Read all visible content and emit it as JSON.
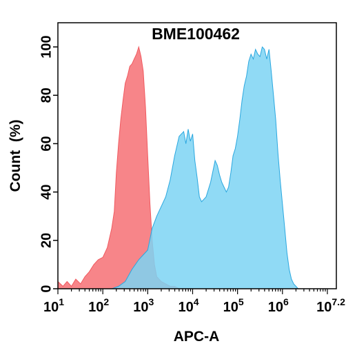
{
  "chart_data": {
    "type": "area",
    "title": "BME100462",
    "xlabel": "APC-A",
    "ylabel": "Count  (%)",
    "x_scale": "log10",
    "xlim": [
      10,
      15848932
    ],
    "ylim": [
      0,
      110
    ],
    "y_ticks": [
      0,
      20,
      40,
      60,
      80,
      100
    ],
    "y_tick_labels": [
      "0",
      "20",
      "40",
      "60",
      "80",
      "100"
    ],
    "x_ticks": [
      {
        "base": "10",
        "exp": "1"
      },
      {
        "base": "10",
        "exp": "2"
      },
      {
        "base": "10",
        "exp": "3"
      },
      {
        "base": "10",
        "exp": "4"
      },
      {
        "base": "10",
        "exp": "5"
      },
      {
        "base": "10",
        "exp": "6"
      },
      {
        "base": "10",
        "exp": "7.2"
      }
    ],
    "grid": false,
    "legend": "none",
    "series": [
      {
        "color": "#f0595f",
        "fill": "#f77e83",
        "points": [
          [
            10,
            3
          ],
          [
            13,
            1
          ],
          [
            16,
            3
          ],
          [
            20,
            1
          ],
          [
            25,
            4
          ],
          [
            32,
            2
          ],
          [
            40,
            5
          ],
          [
            50,
            7
          ],
          [
            63,
            10
          ],
          [
            79,
            12
          ],
          [
            100,
            13
          ],
          [
            126,
            17
          ],
          [
            158,
            25
          ],
          [
            180,
            32
          ],
          [
            200,
            48
          ],
          [
            224,
            60
          ],
          [
            251,
            70
          ],
          [
            282,
            78
          ],
          [
            316,
            85
          ],
          [
            355,
            88
          ],
          [
            398,
            92
          ],
          [
            447,
            93
          ],
          [
            500,
            95
          ],
          [
            562,
            97
          ],
          [
            631,
            100
          ],
          [
            708,
            96
          ],
          [
            794,
            90
          ],
          [
            891,
            75
          ],
          [
            1000,
            55
          ],
          [
            1122,
            35
          ],
          [
            1259,
            20
          ],
          [
            1413,
            10
          ],
          [
            1585,
            5
          ],
          [
            1995,
            3
          ],
          [
            2512,
            2
          ],
          [
            3162,
            1
          ],
          [
            3981,
            1
          ],
          [
            5012,
            0
          ],
          [
            6310,
            0
          ]
        ]
      },
      {
        "color": "#2aa7df",
        "fill": "#7dd3f3",
        "points": [
          [
            158,
            0
          ],
          [
            224,
            1
          ],
          [
            316,
            3
          ],
          [
            447,
            8
          ],
          [
            631,
            12
          ],
          [
            794,
            14
          ],
          [
            1000,
            16
          ],
          [
            1259,
            25
          ],
          [
            1585,
            30
          ],
          [
            1995,
            34
          ],
          [
            2512,
            38
          ],
          [
            3162,
            45
          ],
          [
            3981,
            55
          ],
          [
            5012,
            63
          ],
          [
            6310,
            65
          ],
          [
            7079,
            60
          ],
          [
            7943,
            66
          ],
          [
            8913,
            61
          ],
          [
            10000,
            64
          ],
          [
            11220,
            53
          ],
          [
            12589,
            46
          ],
          [
            14125,
            38
          ],
          [
            15849,
            36
          ],
          [
            19953,
            38
          ],
          [
            25119,
            44
          ],
          [
            31623,
            53
          ],
          [
            35481,
            51
          ],
          [
            39811,
            47
          ],
          [
            44668,
            44
          ],
          [
            50119,
            42
          ],
          [
            56234,
            40
          ],
          [
            63096,
            42
          ],
          [
            70795,
            48
          ],
          [
            79433,
            55
          ],
          [
            89125,
            58
          ],
          [
            100000,
            63
          ],
          [
            112202,
            70
          ],
          [
            125893,
            78
          ],
          [
            141254,
            84
          ],
          [
            158489,
            88
          ],
          [
            177828,
            94
          ],
          [
            199526,
            97
          ],
          [
            223872,
            95
          ],
          [
            251189,
            99
          ],
          [
            281838,
            97
          ],
          [
            316228,
            96
          ],
          [
            354813,
            100
          ],
          [
            398107,
            99
          ],
          [
            446684,
            95
          ],
          [
            501187,
            99
          ],
          [
            562341,
            90
          ],
          [
            630957,
            80
          ],
          [
            707946,
            70
          ],
          [
            794328,
            56
          ],
          [
            891251,
            45
          ],
          [
            1000000,
            35
          ],
          [
            1122018,
            25
          ],
          [
            1258925,
            15
          ],
          [
            1412538,
            8
          ],
          [
            1584893,
            4
          ],
          [
            1778279,
            2
          ],
          [
            1995262,
            1
          ],
          [
            2238721,
            0
          ]
        ]
      }
    ]
  }
}
